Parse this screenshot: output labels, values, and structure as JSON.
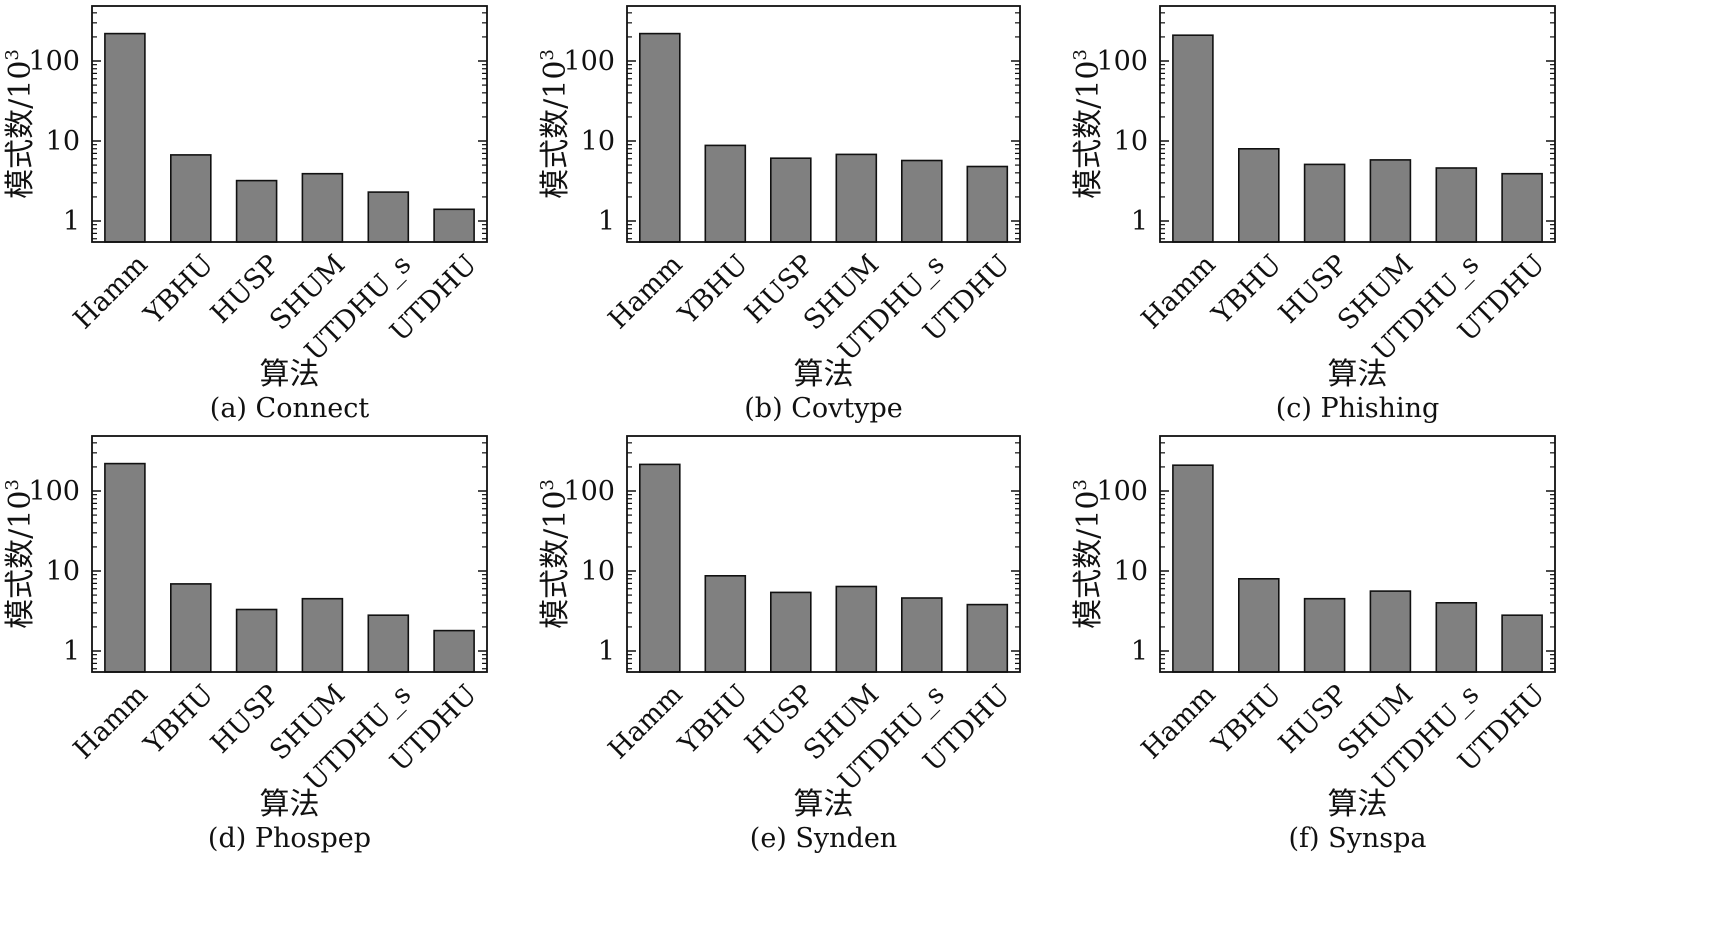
{
  "chart_data": [
    {
      "type": "bar",
      "title": "(a) Connect",
      "xlabel": "算法",
      "ylabel": "模式数/10",
      "ylabel_sup": "3",
      "yscale": "log",
      "ylim": [
        0.5,
        400
      ],
      "yticks": [
        "1",
        "10",
        "100"
      ],
      "categories": [
        "Hamm",
        "YBHU",
        "HUSP",
        "SHUM",
        "UTDHU_s",
        "UTDHU"
      ],
      "values": [
        220,
        6.7,
        3.2,
        3.9,
        2.3,
        1.4
      ],
      "bar_color": "#808080"
    },
    {
      "type": "bar",
      "title": "(b) Covtype",
      "xlabel": "算法",
      "ylabel": "模式数/10",
      "ylabel_sup": "3",
      "yscale": "log",
      "ylim": [
        0.5,
        400
      ],
      "yticks": [
        "1",
        "10",
        "100"
      ],
      "categories": [
        "Hamm",
        "YBHU",
        "HUSP",
        "SHUM",
        "UTDHU_s",
        "UTDHU"
      ],
      "values": [
        220,
        8.8,
        6.1,
        6.8,
        5.7,
        4.8
      ],
      "bar_color": "#808080"
    },
    {
      "type": "bar",
      "title": "(c) Phishing",
      "xlabel": "算法",
      "ylabel": "模式数/10",
      "ylabel_sup": "3",
      "yscale": "log",
      "ylim": [
        0.5,
        400
      ],
      "yticks": [
        "1",
        "10",
        "100"
      ],
      "categories": [
        "Hamm",
        "YBHU",
        "HUSP",
        "SHUM",
        "UTDHU_s",
        "UTDHU"
      ],
      "values": [
        210,
        8.0,
        5.1,
        5.8,
        4.6,
        3.9
      ],
      "bar_color": "#808080"
    },
    {
      "type": "bar",
      "title": "(d) Phospep",
      "xlabel": "算法",
      "ylabel": "模式数/10",
      "ylabel_sup": "3",
      "yscale": "log",
      "ylim": [
        0.5,
        400
      ],
      "yticks": [
        "1",
        "10",
        "100"
      ],
      "categories": [
        "Hamm",
        "YBHU",
        "HUSP",
        "SHUM",
        "UTDHU_s",
        "UTDHU"
      ],
      "values": [
        220,
        6.9,
        3.3,
        4.5,
        2.8,
        1.8
      ],
      "bar_color": "#808080"
    },
    {
      "type": "bar",
      "title": "(e) Synden",
      "xlabel": "算法",
      "ylabel": "模式数/10",
      "ylabel_sup": "3",
      "yscale": "log",
      "ylim": [
        0.5,
        400
      ],
      "yticks": [
        "1",
        "10",
        "100"
      ],
      "categories": [
        "Hamm",
        "YBHU",
        "HUSP",
        "SHUM",
        "UTDHU_s",
        "UTDHU"
      ],
      "values": [
        215,
        8.7,
        5.4,
        6.4,
        4.6,
        3.8
      ],
      "bar_color": "#808080"
    },
    {
      "type": "bar",
      "title": "(f) Synspa",
      "xlabel": "算法",
      "ylabel": "模式数/10",
      "ylabel_sup": "3",
      "yscale": "log",
      "ylim": [
        0.5,
        400
      ],
      "yticks": [
        "1",
        "10",
        "100"
      ],
      "categories": [
        "Hamm",
        "YBHU",
        "HUSP",
        "SHUM",
        "UTDHU_s",
        "UTDHU"
      ],
      "values": [
        210,
        8.0,
        4.5,
        5.6,
        4.0,
        2.8
      ],
      "bar_color": "#808080"
    }
  ]
}
